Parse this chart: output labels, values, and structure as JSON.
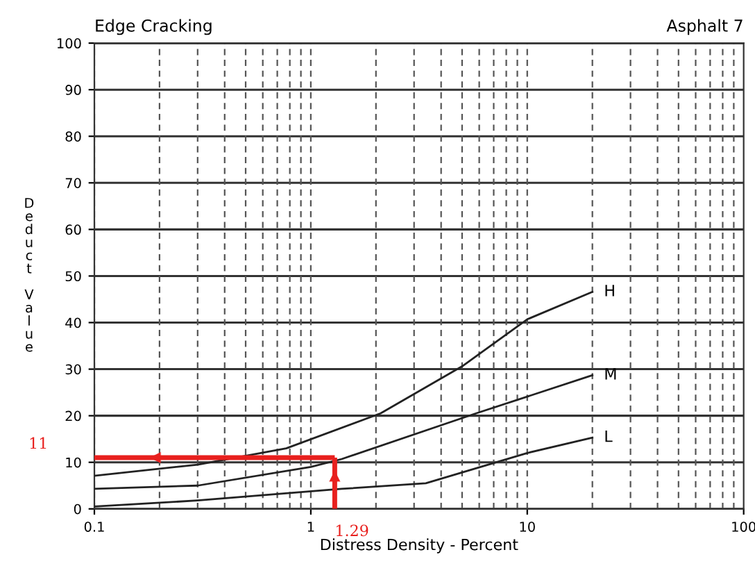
{
  "chart_data": {
    "type": "line",
    "title": "Edge Cracking",
    "subtitle": "Asphalt 7",
    "xlabel": "Distress Density - Percent",
    "ylabel": "Deduct Value",
    "log": "x",
    "xlim": [
      0.1,
      100
    ],
    "xticks": [
      0.1,
      1,
      10,
      100
    ],
    "ylim": [
      0,
      100
    ],
    "yticks": [
      0,
      10,
      20,
      30,
      40,
      50,
      60,
      70,
      80,
      90,
      100
    ],
    "grid": true,
    "marker": "none",
    "line_style": "solid",
    "series": [
      {
        "name": "H",
        "color": "#222222",
        "x": [
          0.1,
          0.3,
          0.77,
          2.1,
          5,
          10,
          20
        ],
        "values": [
          7.1,
          9.5,
          13,
          20.5,
          30.6,
          40.7,
          46.6
        ]
      },
      {
        "name": "M",
        "color": "#222222",
        "x": [
          0.1,
          0.3,
          1,
          1.39,
          5.8,
          20
        ],
        "values": [
          4.3,
          5,
          9,
          10.7,
          20.5,
          28.7
        ]
      },
      {
        "name": "L",
        "color": "#222222",
        "x": [
          0.1,
          0.3,
          1.39,
          3.4,
          10,
          20
        ],
        "values": [
          0.5,
          1.8,
          4.3,
          5.5,
          12,
          15.3
        ]
      }
    ],
    "ref_lines": [
      {
        "axis": "x",
        "value": 1.29,
        "label": "1.29",
        "color": "#e8201e"
      },
      {
        "axis": "y",
        "value": 11,
        "label": "11",
        "color": "#e8201e"
      }
    ]
  }
}
